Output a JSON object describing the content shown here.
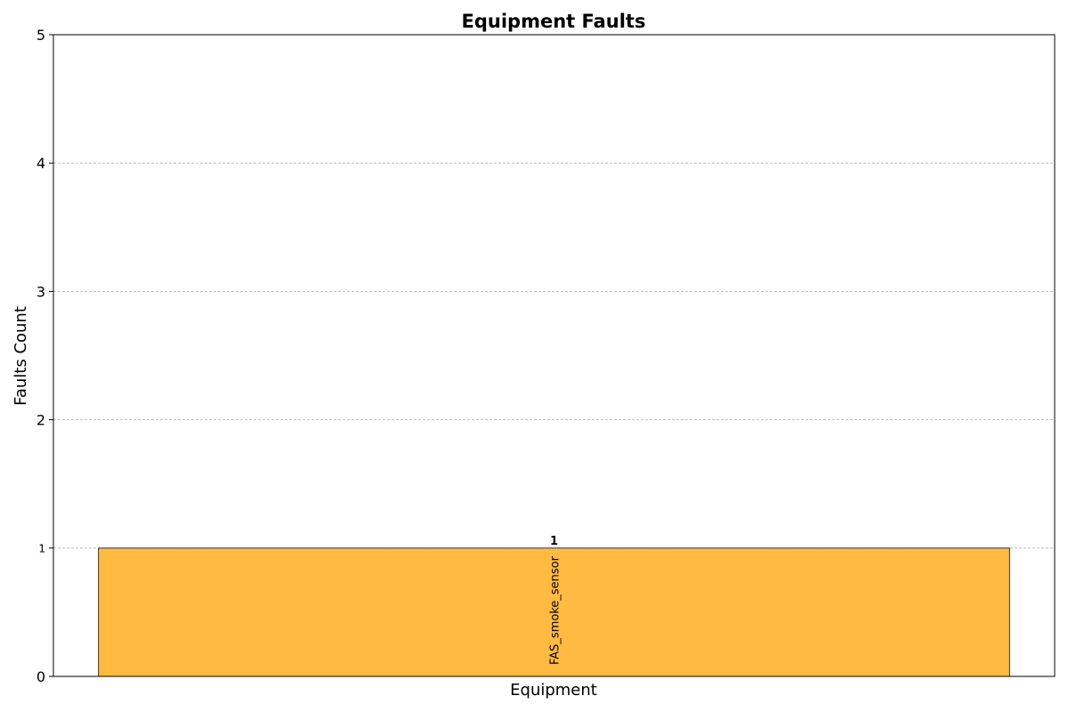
{
  "chart_data": {
    "type": "bar",
    "title": "Equipment Faults",
    "xlabel": "Equipment",
    "ylabel": "Faults Count",
    "categories": [
      "FAS_smoke_sensor"
    ],
    "values": [
      1
    ],
    "data_labels": [
      "1"
    ],
    "ylim": [
      0,
      5
    ],
    "yticks": [
      0,
      1,
      2,
      3,
      4,
      5
    ],
    "ytick_labels": [
      "0",
      "1",
      "2",
      "3",
      "4",
      "5"
    ],
    "grid": "y-dashed",
    "legend": "none",
    "colors": {
      "bar_fill": "#FFBA42",
      "bar_edge": "#333333",
      "grid": "#b0b0b0"
    }
  }
}
